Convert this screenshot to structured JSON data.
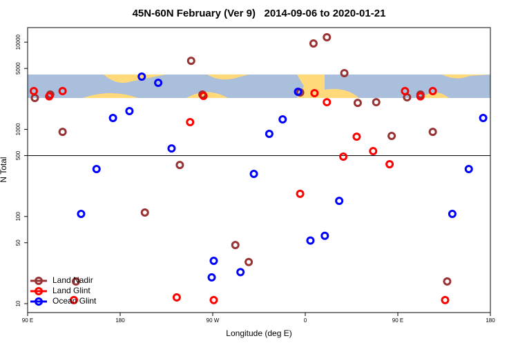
{
  "chart_data": {
    "type": "scatter",
    "title": "45N-60N February (Ver 9)   2014-09-06 to 2020-01-21",
    "x_label": "Longitude (deg E)",
    "y_label": "N Total",
    "log_y": true,
    "xlim": [
      90,
      540
    ],
    "ylim": [
      7.9,
      14700
    ],
    "xticks": [
      {
        "value": 90,
        "label": "90 E"
      },
      180,
      {
        "value": 270,
        "label": "90 W"
      },
      {
        "value": 360,
        "label": "0"
      },
      {
        "value": 450,
        "label": "90 E"
      },
      {
        "value": 540,
        "label": "180"
      }
    ],
    "yticks": [
      10,
      50,
      100,
      500,
      1000,
      5000,
      10000
    ],
    "hline": 500,
    "legend_position": "bottom-left",
    "series": [
      {
        "name": "Land Nadir",
        "color": "#993333",
        "x": [
          97,
          112,
          124,
          137,
          204,
          238,
          249,
          260,
          292,
          305,
          355,
          368,
          381,
          398,
          411,
          429,
          444,
          459,
          472,
          484,
          498
        ],
        "values": [
          2290,
          2510,
          936,
          18,
          111,
          390,
          6120,
          2510,
          47,
          30,
          2650,
          9660,
          11400,
          4410,
          2010,
          2050,
          840,
          2330,
          2510,
          936,
          18
        ]
      },
      {
        "name": "Land Glint",
        "color": "#ff0000",
        "x": [
          96,
          111,
          124,
          135,
          235,
          248,
          261,
          271,
          355,
          369,
          381,
          397,
          410,
          426,
          442,
          457,
          472,
          484,
          496
        ],
        "values": [
          2750,
          2390,
          2750,
          11,
          11.8,
          1210,
          2420,
          11,
          182,
          2600,
          2050,
          486,
          824,
          562,
          398,
          2750,
          2390,
          2750,
          11
        ]
      },
      {
        "name": "Ocean Glint",
        "color": "#0000ff",
        "x": [
          142,
          157,
          173,
          189,
          201,
          217,
          230,
          269,
          271,
          297,
          310,
          325,
          338,
          353,
          365,
          379,
          393,
          503,
          519,
          533
        ],
        "values": [
          107,
          350,
          1350,
          1620,
          4030,
          3420,
          604,
          20,
          31,
          23,
          308,
          887,
          1300,
          2700,
          53,
          60,
          151,
          107,
          350,
          1350
        ]
      }
    ]
  }
}
